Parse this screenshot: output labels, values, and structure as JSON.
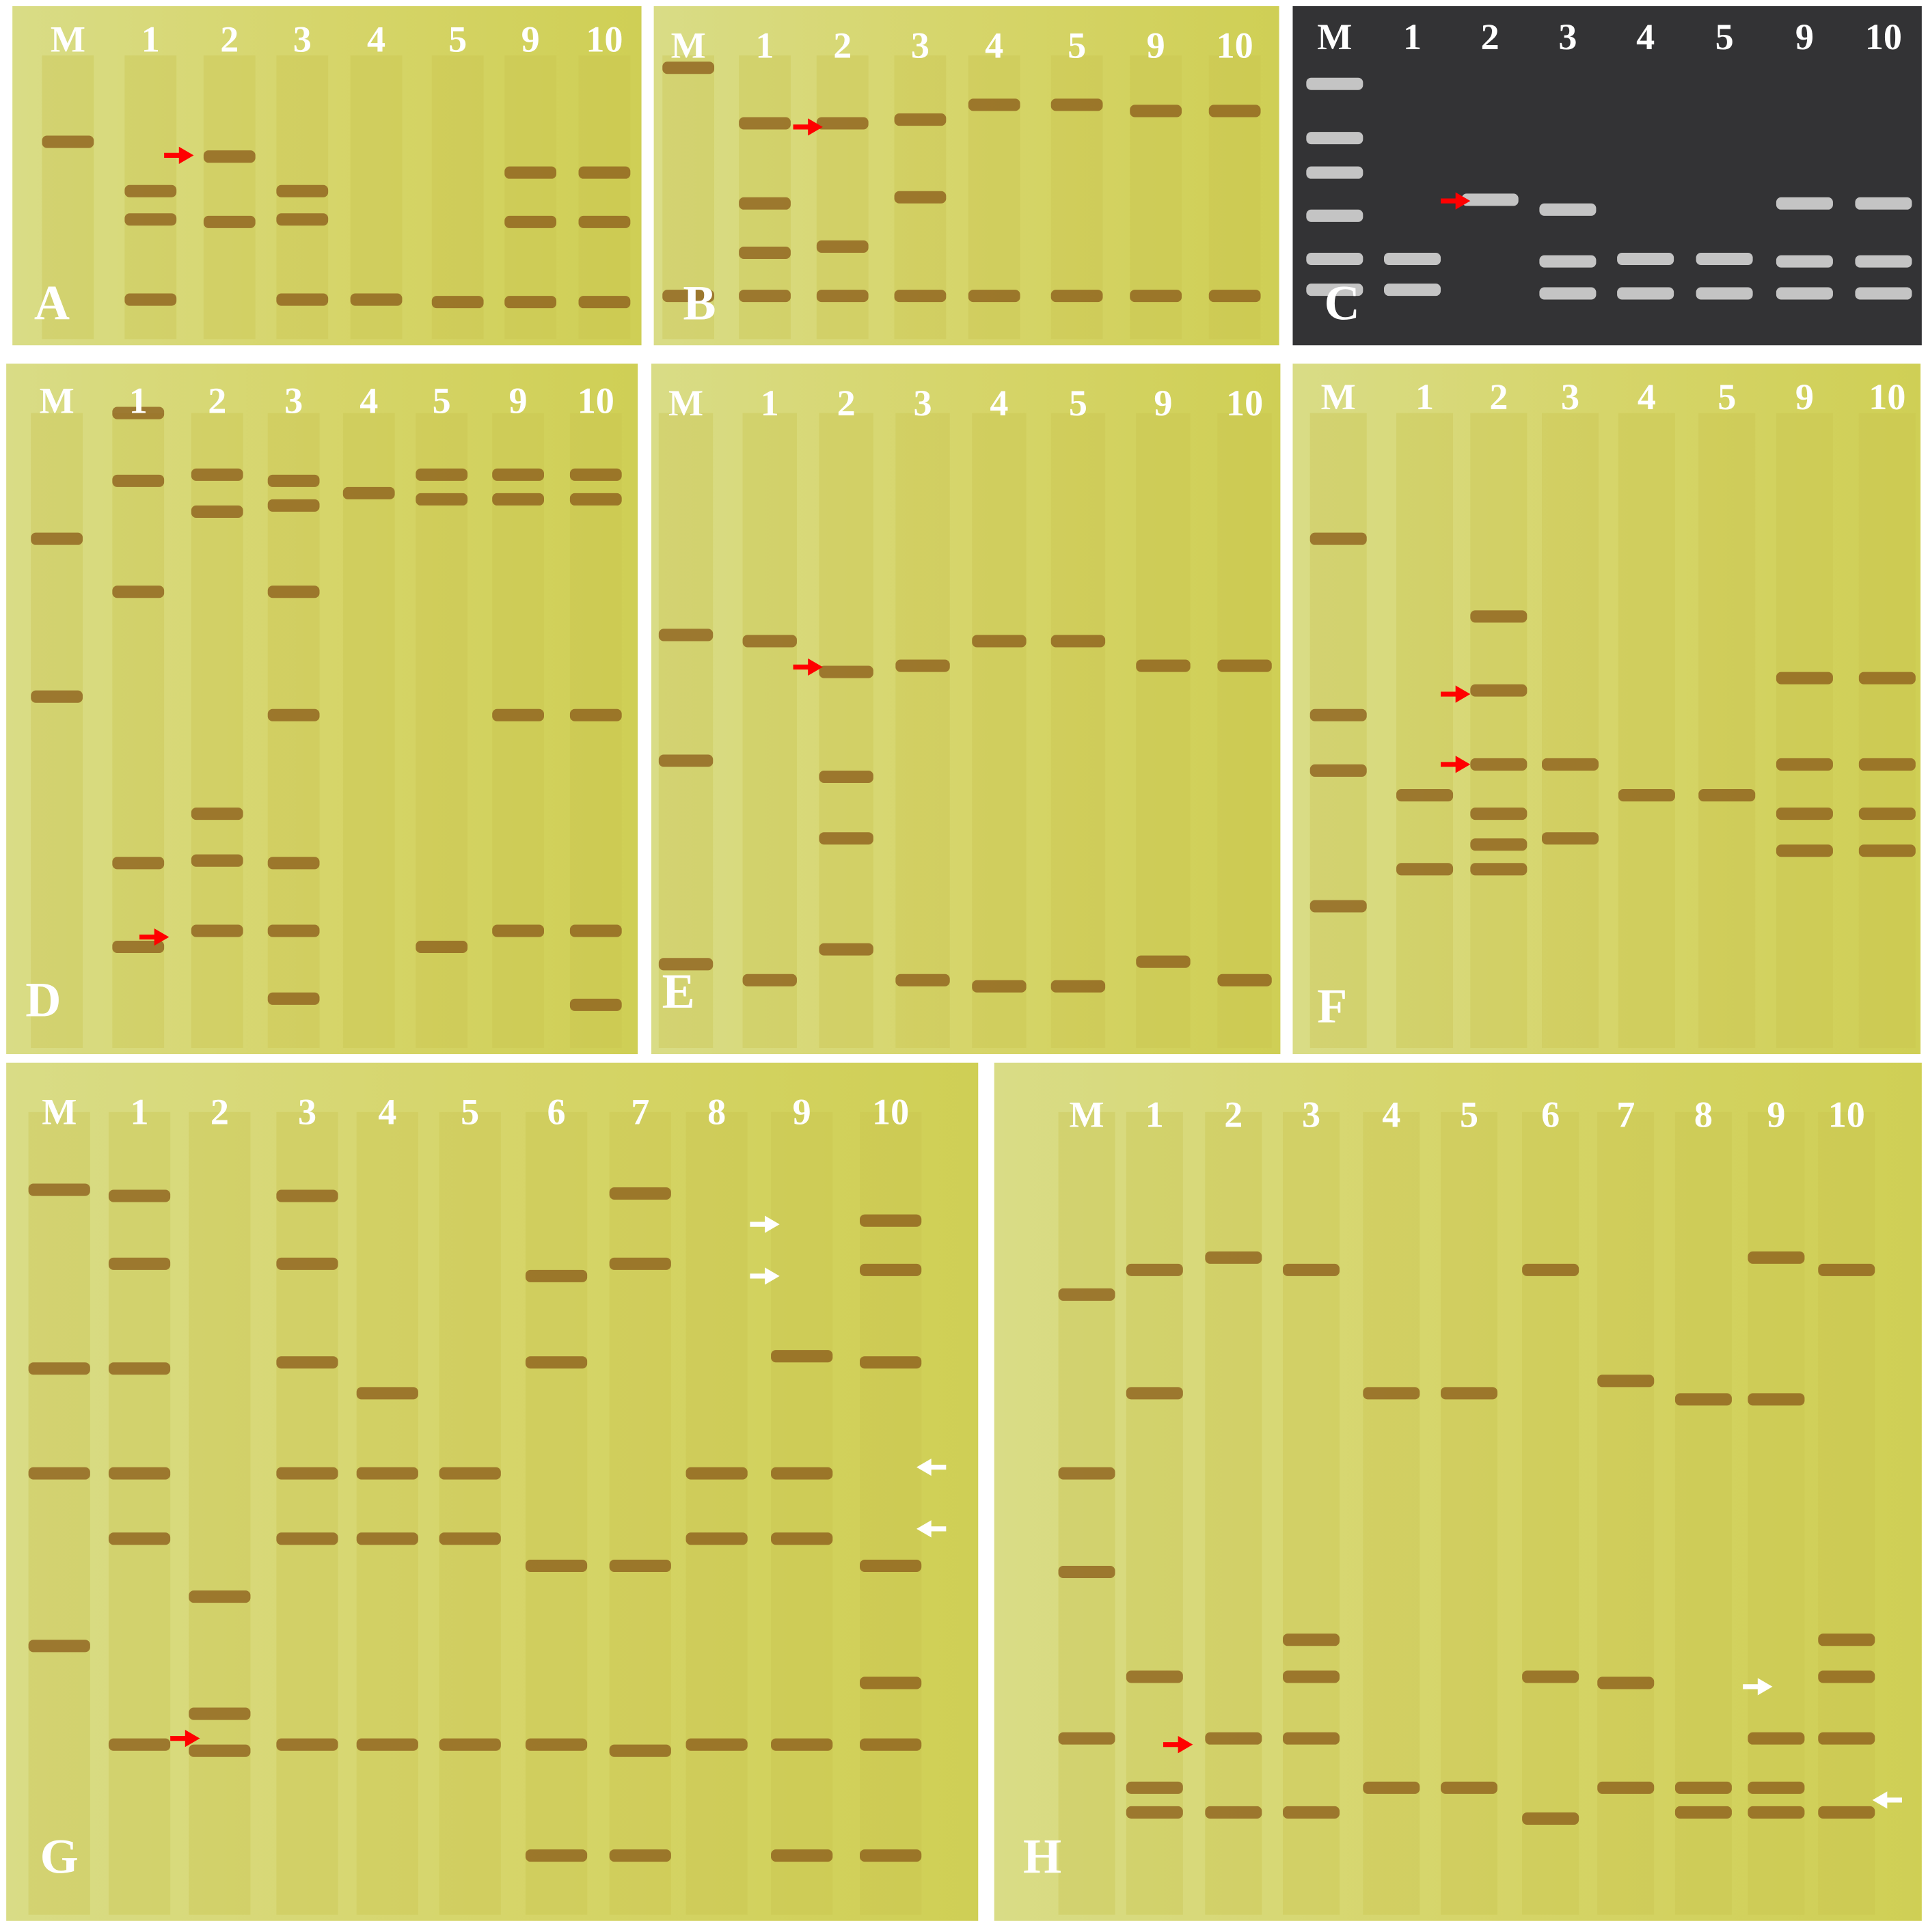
{
  "panels": [
    {
      "label": "A",
      "lanes": [
        "M",
        "1",
        "2",
        "3",
        "4",
        "5",
        "9",
        "10"
      ]
    },
    {
      "label": "B",
      "lanes": [
        "M",
        "1",
        "2",
        "3",
        "4",
        "5",
        "9",
        "10"
      ]
    },
    {
      "label": "C",
      "lanes": [
        "M",
        "1",
        "2",
        "3",
        "4",
        "5",
        "9",
        "10"
      ]
    },
    {
      "label": "D",
      "lanes": [
        "M",
        "1",
        "2",
        "3",
        "4",
        "5",
        "9",
        "10"
      ]
    },
    {
      "label": "E",
      "lanes": [
        "M",
        "1",
        "2",
        "3",
        "4",
        "5",
        "9",
        "10"
      ]
    },
    {
      "label": "F",
      "lanes": [
        "M",
        "1",
        "2",
        "3",
        "4",
        "5",
        "9",
        "10"
      ]
    },
    {
      "label": "G",
      "lanes": [
        "M",
        "1",
        "2",
        "3",
        "4",
        "5",
        "6",
        "7",
        "8",
        "9",
        "10"
      ]
    },
    {
      "label": "H",
      "lanes": [
        "M",
        "1",
        "2",
        "3",
        "4",
        "5",
        "6",
        "7",
        "8",
        "9",
        "10"
      ]
    }
  ]
}
